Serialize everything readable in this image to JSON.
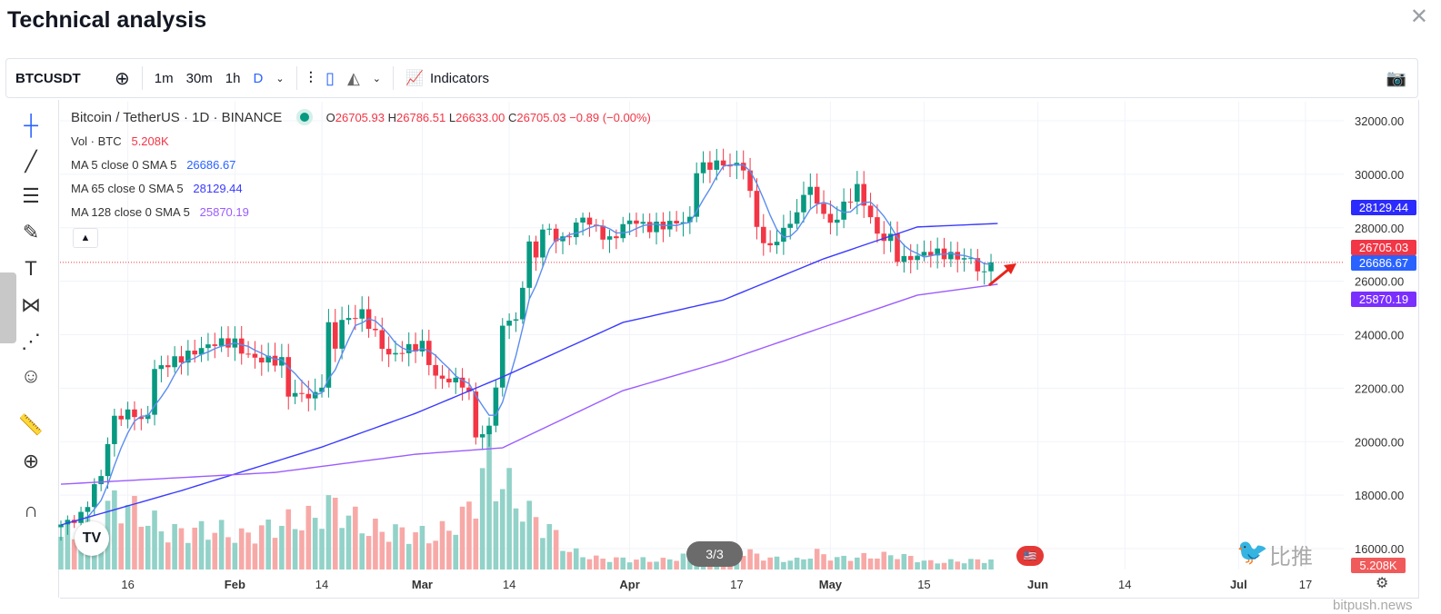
{
  "header": {
    "title": "Technical analysis"
  },
  "toolbar": {
    "symbol": "BTCUSDT",
    "intervals": [
      "1m",
      "30m",
      "1h",
      "D"
    ],
    "indicators": "Indicators"
  },
  "legend": {
    "name": "Bitcoin / TetherUS · 1D · BINANCE",
    "o_label": "O",
    "o": "26705.93",
    "h_label": "H",
    "h": "26786.51",
    "l_label": "L",
    "l": "26633.00",
    "c_label": "C",
    "c": "26705.03",
    "change": "−0.89 (−0.00%)",
    "vol_label": "Vol · BTC",
    "vol": "5.208K",
    "ma5_label": "MA 5 close 0 SMA 5",
    "ma5": "26686.67",
    "ma65_label": "MA 65 close 0 SMA 5",
    "ma65": "28129.44",
    "ma128_label": "MA 128 close 0 SMA 5",
    "ma128": "25870.19"
  },
  "colors": {
    "up": "#089981",
    "down": "#f23645",
    "ma5": "#5b8def",
    "ma65": "#3a3aff",
    "ma128": "#9b5cff"
  },
  "footer": {
    "page": "3/3",
    "watermark_cn": "比推",
    "watermark": "bitpush.news",
    "vol_tag": "5.208K"
  },
  "chart_data": {
    "type": "candlestick",
    "start": "Jan 6",
    "yticks": [
      32000,
      30000,
      28000,
      26000,
      24000,
      22000,
      20000,
      18000,
      16000
    ],
    "ytick_labels": [
      "32000.00",
      "30000.00",
      "28000.00",
      "26000.00",
      "24000.00",
      "22000.00",
      "20000.00",
      "18000.00",
      "16000.00"
    ],
    "xticks": [
      {
        "d": 10,
        "label": "16"
      },
      {
        "d": 26,
        "label": "Feb"
      },
      {
        "d": 39,
        "label": "14"
      },
      {
        "d": 54,
        "label": "Mar"
      },
      {
        "d": 67,
        "label": "14"
      },
      {
        "d": 85,
        "label": "Apr"
      },
      {
        "d": 101,
        "label": "17"
      },
      {
        "d": 115,
        "label": "May"
      },
      {
        "d": 129,
        "label": "15"
      },
      {
        "d": 146,
        "label": "Jun"
      },
      {
        "d": 159,
        "label": "14"
      },
      {
        "d": 176,
        "label": "Jul"
      },
      {
        "d": 186,
        "label": "17"
      }
    ],
    "close_keypoints": [
      [
        0,
        16900
      ],
      [
        3,
        17200
      ],
      [
        6,
        18800
      ],
      [
        7,
        19900
      ],
      [
        8,
        20900
      ],
      [
        11,
        21100
      ],
      [
        12,
        20700
      ],
      [
        13,
        21100
      ],
      [
        14,
        22700
      ],
      [
        15,
        22800
      ],
      [
        23,
        23700
      ],
      [
        26,
        23700
      ],
      [
        27,
        23400
      ],
      [
        29,
        23100
      ],
      [
        33,
        23000
      ],
      [
        34,
        21800
      ],
      [
        38,
        21700
      ],
      [
        39,
        22200
      ],
      [
        40,
        24300
      ],
      [
        41,
        23600
      ],
      [
        42,
        24500
      ],
      [
        45,
        24800
      ],
      [
        46,
        24400
      ],
      [
        49,
        23200
      ],
      [
        52,
        23500
      ],
      [
        54,
        23600
      ],
      [
        56,
        22400
      ],
      [
        60,
        22200
      ],
      [
        61,
        21700
      ],
      [
        62,
        20300
      ],
      [
        63,
        20200
      ],
      [
        64,
        20600
      ],
      [
        65,
        22100
      ],
      [
        66,
        24200
      ],
      [
        67,
        24700
      ],
      [
        68,
        24400
      ],
      [
        70,
        27400
      ],
      [
        71,
        26900
      ],
      [
        72,
        28000
      ],
      [
        75,
        27500
      ],
      [
        78,
        28400
      ],
      [
        82,
        27500
      ],
      [
        85,
        28300
      ],
      [
        88,
        28000
      ],
      [
        94,
        28300
      ],
      [
        95,
        30200
      ],
      [
        98,
        30400
      ],
      [
        102,
        30300
      ],
      [
        103,
        29200
      ],
      [
        104,
        28200
      ],
      [
        105,
        27300
      ],
      [
        107,
        27500
      ],
      [
        109,
        28300
      ],
      [
        110,
        28400
      ],
      [
        111,
        29400
      ],
      [
        112,
        29400
      ],
      [
        115,
        28100
      ],
      [
        119,
        29500
      ],
      [
        120,
        28900
      ],
      [
        121,
        28400
      ],
      [
        122,
        27700
      ],
      [
        124,
        27600
      ],
      [
        125,
        26900
      ],
      [
        126,
        26800
      ],
      [
        130,
        27100
      ],
      [
        134,
        26900
      ],
      [
        136,
        26800
      ],
      [
        138,
        26200
      ],
      [
        139,
        26705
      ]
    ],
    "volume_keypoints_k": [
      [
        0,
        18
      ],
      [
        6,
        25
      ],
      [
        8,
        38
      ],
      [
        12,
        30
      ],
      [
        16,
        20
      ],
      [
        23,
        22
      ],
      [
        27,
        18
      ],
      [
        33,
        25
      ],
      [
        38,
        28
      ],
      [
        40,
        35
      ],
      [
        42,
        32
      ],
      [
        46,
        22
      ],
      [
        52,
        20
      ],
      [
        56,
        18
      ],
      [
        60,
        28
      ],
      [
        62,
        40
      ],
      [
        64,
        62
      ],
      [
        65,
        50
      ],
      [
        66,
        48
      ],
      [
        68,
        38
      ],
      [
        70,
        30
      ],
      [
        73,
        22
      ],
      [
        76,
        10
      ],
      [
        80,
        6
      ],
      [
        90,
        5
      ],
      [
        94,
        8
      ],
      [
        98,
        7
      ],
      [
        102,
        10
      ],
      [
        106,
        6
      ],
      [
        110,
        5
      ],
      [
        113,
        9
      ],
      [
        116,
        6
      ],
      [
        120,
        7
      ],
      [
        125,
        8
      ],
      [
        130,
        4
      ],
      [
        139,
        5.208
      ]
    ],
    "ma65_keypoints": [
      [
        0,
        16885
      ],
      [
        18,
        18170
      ],
      [
        39,
        19800
      ],
      [
        53,
        21060
      ],
      [
        66,
        22420
      ],
      [
        84,
        24460
      ],
      [
        99,
        25300
      ],
      [
        114,
        26840
      ],
      [
        128,
        28030
      ],
      [
        140,
        28160
      ]
    ],
    "ma128_keypoints": [
      [
        0,
        18410
      ],
      [
        32,
        18850
      ],
      [
        53,
        19530
      ],
      [
        66,
        19770
      ],
      [
        84,
        21910
      ],
      [
        99,
        23000
      ],
      [
        114,
        24290
      ],
      [
        128,
        25480
      ],
      [
        140,
        25890
      ]
    ]
  }
}
